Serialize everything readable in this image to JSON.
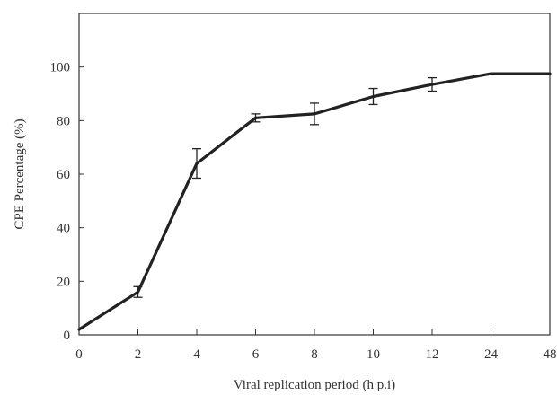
{
  "chart_data": {
    "type": "line",
    "title": "",
    "xlabel": "Viral replication period (h p.i)",
    "ylabel": "CPE Percentage  (%)",
    "categories": [
      "0",
      "2",
      "4",
      "6",
      "8",
      "10",
      "12",
      "24",
      "48"
    ],
    "series": [
      {
        "values": [
          2,
          16,
          64,
          81,
          82.5,
          89,
          93.5,
          97.5,
          97.5
        ],
        "errors": [
          0,
          2,
          5.5,
          1.5,
          4,
          3,
          2.5,
          0,
          0
        ]
      }
    ],
    "ylim": [
      0,
      120
    ],
    "yticks": [
      "0",
      "20",
      "40",
      "60",
      "80",
      "100"
    ],
    "ytick_values": [
      0,
      20,
      40,
      60,
      80,
      100
    ],
    "grid": false,
    "legend": "none",
    "colors": {
      "line": "#222222",
      "axis": "#333333",
      "text": "#333333"
    }
  }
}
